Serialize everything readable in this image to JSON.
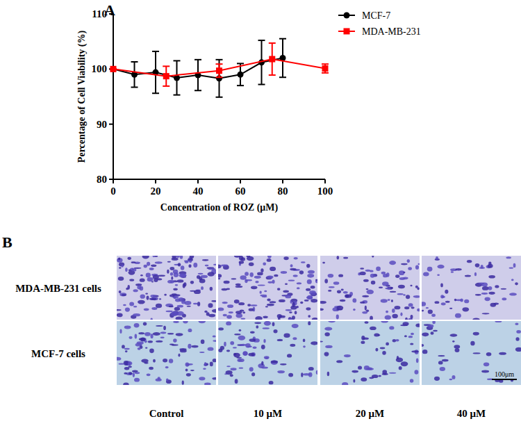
{
  "chart_data": {
    "type": "line",
    "panel_label": "A",
    "x_label": "Concentration of ROZ (μM)",
    "y_label": "Percentage of Cell Viability (%)",
    "xlim": [
      0,
      100
    ],
    "xticks": [
      0,
      20,
      40,
      60,
      80,
      100
    ],
    "ylim": [
      80,
      110
    ],
    "yticks": [
      80,
      90,
      100,
      110
    ],
    "legend": "right",
    "series": [
      {
        "name": "MCF-7",
        "color": "#000000",
        "marker": "circle",
        "line_style": "solid",
        "x": [
          0,
          10,
          20,
          30,
          40,
          50,
          60,
          70,
          80
        ],
        "values": [
          100,
          99,
          99.4,
          98.4,
          98.9,
          98.3,
          99,
          101.2,
          102
        ],
        "errors": [
          0,
          2.3,
          3.8,
          3.1,
          2.8,
          3.4,
          2,
          4,
          3.5
        ]
      },
      {
        "name": "MDA-MB-231",
        "color": "#ff0000",
        "marker": "square",
        "line_style": "solid",
        "x": [
          0,
          25,
          50,
          75,
          100
        ],
        "values": [
          100,
          98.7,
          99.7,
          101.8,
          100.1
        ],
        "errors": [
          0,
          1.8,
          1.2,
          2.9,
          0.8
        ]
      }
    ]
  },
  "image_panel": {
    "panel_label": "B",
    "rows": [
      "MDA-MB-231 cells",
      "MCF-7 cells"
    ],
    "columns": [
      "Control",
      "10 μM",
      "20 μM",
      "40 μM"
    ],
    "scale_bar": "100μm"
  }
}
